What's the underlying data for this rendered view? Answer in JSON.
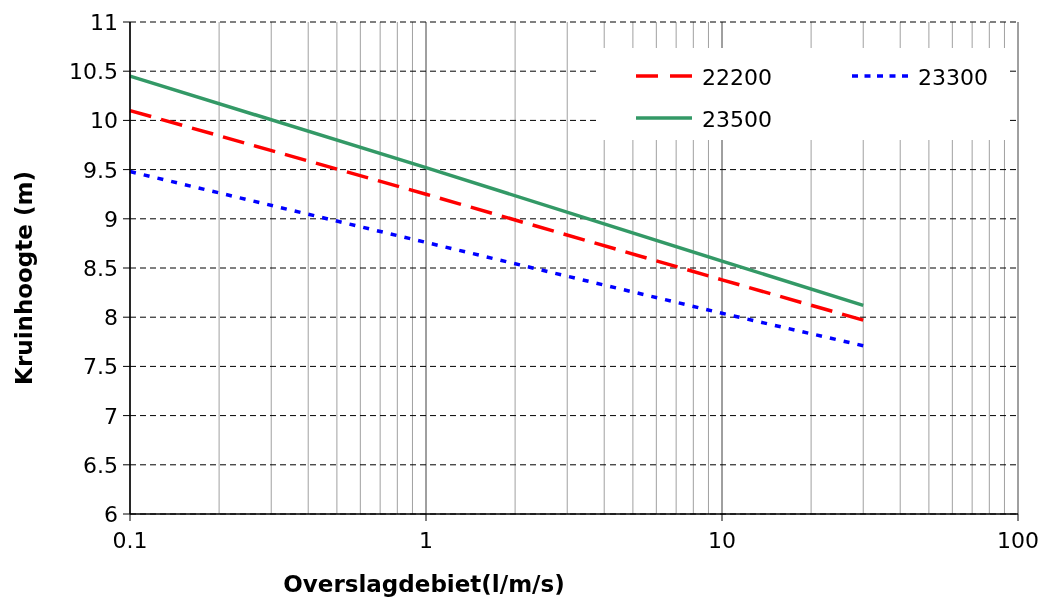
{
  "chart_data": {
    "type": "line",
    "xlabel": "Overslagdebiet(l/m/s)",
    "ylabel": "Kruinhoogte (m)",
    "log": "x",
    "grid": true,
    "legend": "top right",
    "xlim": [
      0.1,
      100
    ],
    "ylim": [
      6,
      11
    ],
    "xticks": [
      0.1,
      {
        "value": 0.2,
        "label": null
      },
      {
        "value": 0.3,
        "label": null
      },
      {
        "value": 0.4,
        "label": null
      },
      {
        "value": 0.5,
        "label": null
      },
      {
        "value": 0.6,
        "label": null
      },
      {
        "value": 0.7,
        "label": null
      },
      {
        "value": 0.8,
        "label": null
      },
      {
        "value": 0.9,
        "label": null
      },
      1,
      {
        "value": 2,
        "label": null
      },
      {
        "value": 3,
        "label": null
      },
      {
        "value": 4,
        "label": null
      },
      {
        "value": 5,
        "label": null
      },
      {
        "value": 6,
        "label": null
      },
      {
        "value": 7,
        "label": null
      },
      {
        "value": 8,
        "label": null
      },
      {
        "value": 9,
        "label": null
      },
      10,
      {
        "value": 20,
        "label": null
      },
      {
        "value": 30,
        "label": null
      },
      {
        "value": 40,
        "label": null
      },
      {
        "value": 50,
        "label": null
      },
      {
        "value": 60,
        "label": null
      },
      {
        "value": 70,
        "label": null
      },
      {
        "value": 80,
        "label": null
      },
      {
        "value": 90,
        "label": null
      },
      100
    ],
    "yticks": [
      6,
      6.5,
      7,
      7.5,
      8,
      8.5,
      9,
      9.5,
      10,
      10.5,
      11
    ],
    "x": [
      0.1,
      1,
      10,
      30
    ],
    "series": [
      {
        "name": "22200",
        "color": "#ff0000",
        "line_style": "dashed",
        "values": [
          10.1,
          9.25,
          8.38,
          7.97
        ]
      },
      {
        "name": "23300",
        "color": "#0000ff",
        "line_style": "dotted",
        "values": [
          9.48,
          8.76,
          8.04,
          7.71
        ]
      },
      {
        "name": "23500",
        "color": "#339966",
        "line_style": "solid",
        "values": [
          10.45,
          9.52,
          8.57,
          8.12
        ]
      }
    ]
  }
}
